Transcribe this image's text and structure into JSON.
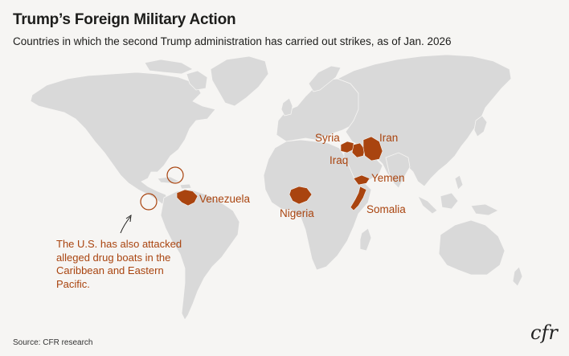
{
  "header": {
    "title": "Trump’s Foreign Military Action",
    "subtitle": "Countries in which the second Trump administration has carried out strikes, as of Jan. 2026"
  },
  "map": {
    "base_color": "#d9d9d9",
    "highlight_color": "#a9440f",
    "highlighted_countries": [
      "Syria",
      "Iran",
      "Iraq",
      "Yemen",
      "Venezuela",
      "Nigeria",
      "Somalia"
    ],
    "labels": {
      "syria": "Syria",
      "iran": "Iran",
      "iraq": "Iraq",
      "yemen": "Yemen",
      "venezuela": "Venezuela",
      "nigeria": "Nigeria",
      "somalia": "Somalia"
    },
    "annotation": "The U.S. has also attacked alleged drug boats in the Caribbean and Eastern Pacific.",
    "annotation_markers": [
      "Caribbean",
      "Eastern Pacific"
    ]
  },
  "footer": {
    "source": "Source: CFR research",
    "logo": "cfr"
  }
}
